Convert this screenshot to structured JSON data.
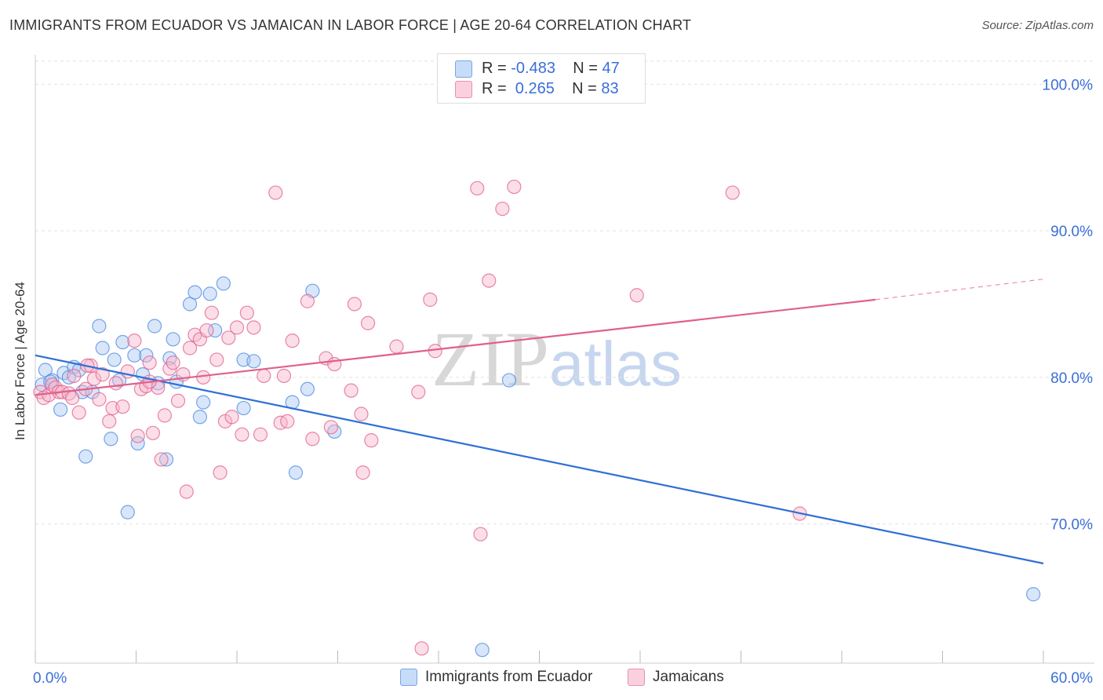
{
  "title": "IMMIGRANTS FROM ECUADOR VS JAMAICAN IN LABOR FORCE | AGE 20-64 CORRELATION CHART",
  "source": "Source: ZipAtlas.com",
  "watermark": {
    "zip": "ZIP",
    "atlas": "atlas"
  },
  "legend": {
    "rows": [
      {
        "r_label": "R = ",
        "r_value": "-0.483",
        "n_label": "N = ",
        "n_value": "47",
        "color": "#aac8f5"
      },
      {
        "r_label": "R = ",
        "r_value": " 0.265",
        "n_label": "N = ",
        "n_value": "83",
        "color": "#f7b6cb"
      }
    ]
  },
  "bottom_legend": [
    "Immigrants from Ecuador",
    "Jamaicans"
  ],
  "chart_data": {
    "type": "scatter",
    "title": "IMMIGRANTS FROM ECUADOR VS JAMAICAN IN LABOR FORCE | AGE 20-64 CORRELATION CHART",
    "xlabel": "",
    "ylabel": "In Labor Force | Age 20-64",
    "xlim": [
      0,
      60
    ],
    "ylim": [
      60.5,
      102
    ],
    "x_tick_labels": [
      {
        "value": 0,
        "label": "0.0%"
      },
      {
        "value": 60,
        "label": "60.0%"
      }
    ],
    "y_ticks": [
      {
        "value": 100,
        "label": "100.0%"
      },
      {
        "value": 90,
        "label": "90.0%"
      },
      {
        "value": 80,
        "label": "80.0%"
      },
      {
        "value": 70,
        "label": "70.0%"
      }
    ],
    "x_minor_ticks": [
      0,
      6,
      12,
      18,
      24,
      30,
      36,
      42,
      48,
      54,
      60
    ],
    "grid": true,
    "series": [
      {
        "name": "Immigrants from Ecuador",
        "color": "#4a8ae0",
        "fill": "#aac8f5",
        "points": [
          [
            0.4,
            79.5
          ],
          [
            0.6,
            80.5
          ],
          [
            1.0,
            79.8
          ],
          [
            1.5,
            77.8
          ],
          [
            1.7,
            80.3
          ],
          [
            2.0,
            80.0
          ],
          [
            2.3,
            80.7
          ],
          [
            2.6,
            80.5
          ],
          [
            2.8,
            79.0
          ],
          [
            3.0,
            74.6
          ],
          [
            3.4,
            79.0
          ],
          [
            3.8,
            83.5
          ],
          [
            4.0,
            82.0
          ],
          [
            4.5,
            75.8
          ],
          [
            4.7,
            81.2
          ],
          [
            5.0,
            79.8
          ],
          [
            5.2,
            82.4
          ],
          [
            5.5,
            70.8
          ],
          [
            5.9,
            81.5
          ],
          [
            6.1,
            75.5
          ],
          [
            6.4,
            80.2
          ],
          [
            6.6,
            81.5
          ],
          [
            7.1,
            83.5
          ],
          [
            7.3,
            79.6
          ],
          [
            7.8,
            74.4
          ],
          [
            8.0,
            81.3
          ],
          [
            8.2,
            82.6
          ],
          [
            8.4,
            79.7
          ],
          [
            9.2,
            85.0
          ],
          [
            9.5,
            85.8
          ],
          [
            9.8,
            77.3
          ],
          [
            10.0,
            78.3
          ],
          [
            10.4,
            85.7
          ],
          [
            10.7,
            83.2
          ],
          [
            11.2,
            86.4
          ],
          [
            12.4,
            77.9
          ],
          [
            12.4,
            81.2
          ],
          [
            13.0,
            81.1
          ],
          [
            15.3,
            78.3
          ],
          [
            15.5,
            73.5
          ],
          [
            16.2,
            79.2
          ],
          [
            16.5,
            85.9
          ],
          [
            17.8,
            76.3
          ],
          [
            28.2,
            79.8
          ],
          [
            26.6,
            61.4
          ],
          [
            59.4,
            65.2
          ],
          [
            0.9,
            79.7
          ]
        ],
        "trend": {
          "x": [
            0,
            60
          ],
          "y": [
            81.5,
            67.3
          ],
          "dashed_from": null
        }
      },
      {
        "name": "Jamaicans",
        "color": "#e0608a",
        "fill": "#f7b6cb",
        "points": [
          [
            0.3,
            79.0
          ],
          [
            0.5,
            78.6
          ],
          [
            0.8,
            78.8
          ],
          [
            1.0,
            79.5
          ],
          [
            1.2,
            79.3
          ],
          [
            1.4,
            79.0
          ],
          [
            1.6,
            79.0
          ],
          [
            2.0,
            78.9
          ],
          [
            2.3,
            80.1
          ],
          [
            2.6,
            77.6
          ],
          [
            3.0,
            79.2
          ],
          [
            3.3,
            80.8
          ],
          [
            3.5,
            79.9
          ],
          [
            3.8,
            78.5
          ],
          [
            4.0,
            80.2
          ],
          [
            4.4,
            77.0
          ],
          [
            4.6,
            77.9
          ],
          [
            4.8,
            79.6
          ],
          [
            5.2,
            78.0
          ],
          [
            5.5,
            80.4
          ],
          [
            5.9,
            82.5
          ],
          [
            6.1,
            76.0
          ],
          [
            6.3,
            79.2
          ],
          [
            6.6,
            79.4
          ],
          [
            6.8,
            81.0
          ],
          [
            7.0,
            76.2
          ],
          [
            7.3,
            79.3
          ],
          [
            7.5,
            74.4
          ],
          [
            7.7,
            77.4
          ],
          [
            8.0,
            80.6
          ],
          [
            8.2,
            81.0
          ],
          [
            8.5,
            78.4
          ],
          [
            8.8,
            80.2
          ],
          [
            9.0,
            72.2
          ],
          [
            9.2,
            82.0
          ],
          [
            9.5,
            82.9
          ],
          [
            9.8,
            82.6
          ],
          [
            10.2,
            83.2
          ],
          [
            10.5,
            84.4
          ],
          [
            10.8,
            81.2
          ],
          [
            11.0,
            73.5
          ],
          [
            11.3,
            77.0
          ],
          [
            11.5,
            82.7
          ],
          [
            11.7,
            77.3
          ],
          [
            12.0,
            83.4
          ],
          [
            12.3,
            76.1
          ],
          [
            12.6,
            84.4
          ],
          [
            13.0,
            83.4
          ],
          [
            13.4,
            76.1
          ],
          [
            13.6,
            80.1
          ],
          [
            14.3,
            92.6
          ],
          [
            14.6,
            76.9
          ],
          [
            15.0,
            77.0
          ],
          [
            15.3,
            82.5
          ],
          [
            16.2,
            85.2
          ],
          [
            16.5,
            75.8
          ],
          [
            17.3,
            81.3
          ],
          [
            17.6,
            76.6
          ],
          [
            17.8,
            80.9
          ],
          [
            18.8,
            79.1
          ],
          [
            19.0,
            85.0
          ],
          [
            19.4,
            77.5
          ],
          [
            19.5,
            73.5
          ],
          [
            19.8,
            83.7
          ],
          [
            20.0,
            75.7
          ],
          [
            21.5,
            82.1
          ],
          [
            22.8,
            79.0
          ],
          [
            23.0,
            61.5
          ],
          [
            23.5,
            85.3
          ],
          [
            23.8,
            81.8
          ],
          [
            26.3,
            92.9
          ],
          [
            26.5,
            69.3
          ],
          [
            27.0,
            86.6
          ],
          [
            27.8,
            91.5
          ],
          [
            28.5,
            93.0
          ],
          [
            35.8,
            85.6
          ],
          [
            41.5,
            92.6
          ],
          [
            45.5,
            70.7
          ],
          [
            3.1,
            80.8
          ],
          [
            6.8,
            79.7
          ],
          [
            14.8,
            80.1
          ],
          [
            10.0,
            80.0
          ],
          [
            2.2,
            78.6
          ]
        ],
        "trend": {
          "x": [
            0,
            50,
            60
          ],
          "y": [
            78.8,
            85.3,
            86.7
          ],
          "dashed_from": 50
        }
      }
    ]
  }
}
